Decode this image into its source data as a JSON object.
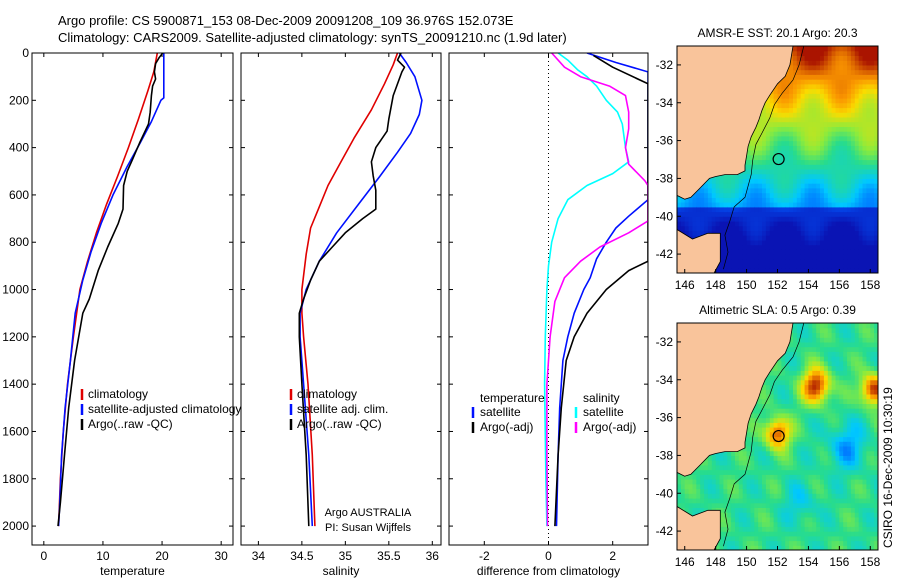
{
  "header": {
    "line1": "Argo profile: CS 5900871_153 08-Dec-2009 20091208_109 36.976S 152.073E",
    "line2": "Climatology: CARS2009. Satellite-adjusted climatology: synTS_20091210.nc (1.9d later)"
  },
  "side_stamp": "CSIRO 16-Dec-2009 10:30:19",
  "colors": {
    "climatology": "#e00000",
    "satellite": "#0010ff",
    "argo": "#000000",
    "magenta": "#ff00ff",
    "cyan": "#00ffff",
    "land": "#f9c49b"
  },
  "chart_data": [
    {
      "type": "line",
      "panel": "temperature",
      "xlabel": "temperature",
      "ylabel": "",
      "xlim": [
        -2,
        32
      ],
      "ylim": [
        2080,
        0
      ],
      "xticks": [
        "0",
        "10",
        "20",
        "30"
      ],
      "yticks": [
        "0",
        "200",
        "400",
        "600",
        "800",
        "1000",
        "1200",
        "1400",
        "1600",
        "1800",
        "2000"
      ],
      "legend": [
        "climatology",
        "satellite-adjusted climatology",
        "Argo(..raw -QC)"
      ],
      "series": [
        {
          "name": "climatology",
          "color": "#e00000",
          "points": [
            [
              19.2,
              0
            ],
            [
              18.6,
              80
            ],
            [
              17.6,
              160
            ],
            [
              16.0,
              280
            ],
            [
              14.3,
              400
            ],
            [
              12.5,
              520
            ],
            [
              10.6,
              640
            ],
            [
              8.9,
              760
            ],
            [
              7.4,
              880
            ],
            [
              6.1,
              1000
            ],
            [
              5.0,
              1200
            ],
            [
              4.0,
              1400
            ],
            [
              3.3,
              1600
            ],
            [
              2.8,
              1800
            ],
            [
              2.5,
              2000
            ]
          ]
        },
        {
          "name": "satellite-adjusted climatology",
          "color": "#0010ff",
          "points": [
            [
              20.3,
              0
            ],
            [
              20.3,
              190
            ],
            [
              19.8,
              200
            ],
            [
              18.2,
              290
            ],
            [
              16.3,
              380
            ],
            [
              14.1,
              480
            ],
            [
              11.7,
              600
            ],
            [
              9.7,
              720
            ],
            [
              8.0,
              840
            ],
            [
              6.6,
              960
            ],
            [
              5.3,
              1100
            ],
            [
              4.5,
              1300
            ],
            [
              3.6,
              1500
            ],
            [
              3.0,
              1700
            ],
            [
              2.7,
              1900
            ],
            [
              2.5,
              2000
            ]
          ]
        },
        {
          "name": "Argo(..raw -QC)",
          "color": "#000000",
          "points": [
            [
              20.1,
              0
            ],
            [
              19.5,
              20
            ],
            [
              18.9,
              45
            ],
            [
              18.7,
              80
            ],
            [
              18.9,
              110
            ],
            [
              18.4,
              140
            ],
            [
              18.2,
              180
            ],
            [
              18.0,
              250
            ],
            [
              17.7,
              300
            ],
            [
              16.2,
              380
            ],
            [
              15.0,
              450
            ],
            [
              14.1,
              500
            ],
            [
              13.5,
              560
            ],
            [
              13.4,
              660
            ],
            [
              12.6,
              720
            ],
            [
              10.8,
              820
            ],
            [
              9.2,
              920
            ],
            [
              7.7,
              1040
            ],
            [
              6.6,
              1100
            ],
            [
              5.2,
              1300
            ],
            [
              4.2,
              1500
            ],
            [
              3.5,
              1700
            ],
            [
              2.8,
              1900
            ],
            [
              2.4,
              2000
            ]
          ]
        }
      ]
    },
    {
      "type": "line",
      "panel": "salinity",
      "xlabel": "salinity",
      "ylabel": "",
      "xlim": [
        33.8,
        36.1
      ],
      "ylim": [
        2080,
        0
      ],
      "xticks": [
        "34",
        "34.5",
        "35",
        "35.5",
        "36"
      ],
      "legend": [
        "climatology",
        "satellite adj. clim.",
        "Argo(..raw -QC)"
      ],
      "annotation": [
        "Argo AUSTRALIA",
        "PI: Susan Wijffels"
      ],
      "series": [
        {
          "name": "climatology",
          "color": "#e00000",
          "points": [
            [
              35.6,
              0
            ],
            [
              35.55,
              50
            ],
            [
              35.45,
              130
            ],
            [
              35.3,
              240
            ],
            [
              35.1,
              360
            ],
            [
              34.95,
              460
            ],
            [
              34.8,
              560
            ],
            [
              34.7,
              650
            ],
            [
              34.6,
              740
            ],
            [
              34.55,
              850
            ],
            [
              34.5,
              1000
            ],
            [
              34.5,
              1100
            ],
            [
              34.52,
              1200
            ],
            [
              34.57,
              1400
            ],
            [
              34.62,
              1700
            ],
            [
              34.65,
              2000
            ]
          ]
        },
        {
          "name": "satellite adj. clim.",
          "color": "#0010ff",
          "points": [
            [
              35.62,
              0
            ],
            [
              35.7,
              40
            ],
            [
              35.8,
              100
            ],
            [
              35.88,
              200
            ],
            [
              35.85,
              260
            ],
            [
              35.75,
              340
            ],
            [
              35.6,
              420
            ],
            [
              35.4,
              520
            ],
            [
              35.15,
              640
            ],
            [
              34.9,
              760
            ],
            [
              34.7,
              880
            ],
            [
              34.55,
              1000
            ],
            [
              34.48,
              1100
            ],
            [
              34.48,
              1200
            ],
            [
              34.52,
              1400
            ],
            [
              34.58,
              1700
            ],
            [
              34.62,
              2000
            ]
          ]
        },
        {
          "name": "Argo(..raw -QC)",
          "color": "#000000",
          "points": [
            [
              35.64,
              0
            ],
            [
              35.6,
              30
            ],
            [
              35.68,
              60
            ],
            [
              35.65,
              80
            ],
            [
              35.55,
              180
            ],
            [
              35.5,
              280
            ],
            [
              35.48,
              330
            ],
            [
              35.35,
              400
            ],
            [
              35.3,
              460
            ],
            [
              35.32,
              520
            ],
            [
              35.35,
              580
            ],
            [
              35.35,
              660
            ],
            [
              35.2,
              700
            ],
            [
              35.0,
              760
            ],
            [
              34.85,
              820
            ],
            [
              34.7,
              880
            ],
            [
              34.6,
              960
            ],
            [
              34.52,
              1040
            ],
            [
              34.47,
              1100
            ],
            [
              34.47,
              1200
            ],
            [
              34.5,
              1400
            ],
            [
              34.55,
              1700
            ],
            [
              34.58,
              2000
            ]
          ]
        }
      ]
    },
    {
      "type": "line",
      "panel": "difference",
      "xlabel": "difference from climatology",
      "ylabel": "",
      "xlim": [
        -3.1,
        3.1
      ],
      "ylim": [
        2080,
        0
      ],
      "xticks": [
        "-2",
        "0",
        "2"
      ],
      "zero_line": "dotted",
      "legend_left": {
        "header": "temperature",
        "items": [
          "satellite",
          "Argo(-adj)"
        ]
      },
      "legend_right": {
        "header": "salinity",
        "items": [
          "satellite",
          "Argo(-adj)"
        ]
      },
      "series": [
        {
          "name": "temperature satellite",
          "color": "#0010ff",
          "points": [
            [
              1.2,
              0
            ],
            [
              2.1,
              40
            ],
            [
              3.1,
              80
            ],
            [
              3.1,
              620
            ],
            [
              2.5,
              690
            ],
            [
              2.1,
              740
            ],
            [
              1.8,
              800
            ],
            [
              1.5,
              870
            ],
            [
              1.3,
              950
            ],
            [
              1.1,
              1000
            ],
            [
              0.8,
              1100
            ],
            [
              0.6,
              1200
            ],
            [
              0.45,
              1300
            ],
            [
              0.35,
              1500
            ],
            [
              0.3,
              1700
            ],
            [
              0.25,
              2000
            ]
          ]
        },
        {
          "name": "temperature Argo(-adj)",
          "color": "#000000",
          "points": [
            [
              1.4,
              10
            ],
            [
              2.0,
              60
            ],
            [
              3.1,
              130
            ],
            [
              3.1,
              880
            ],
            [
              2.5,
              920
            ],
            [
              1.8,
              1000
            ],
            [
              1.2,
              1100
            ],
            [
              0.8,
              1200
            ],
            [
              0.55,
              1300
            ],
            [
              0.4,
              1500
            ],
            [
              0.3,
              1700
            ],
            [
              0.2,
              2000
            ]
          ]
        },
        {
          "name": "salinity satellite",
          "color": "#00ffff",
          "points": [
            [
              0.3,
              0
            ],
            [
              0.6,
              30
            ],
            [
              0.9,
              70
            ],
            [
              1.2,
              100
            ],
            [
              1.5,
              140
            ],
            [
              1.8,
              200
            ],
            [
              2.15,
              250
            ],
            [
              2.3,
              300
            ],
            [
              2.4,
              400
            ],
            [
              2.5,
              460
            ],
            [
              2.0,
              510
            ],
            [
              1.2,
              560
            ],
            [
              0.6,
              620
            ],
            [
              0.3,
              700
            ],
            [
              0.1,
              800
            ],
            [
              0.0,
              900
            ],
            [
              -0.05,
              1000
            ],
            [
              -0.1,
              1200
            ],
            [
              -0.12,
              1400
            ],
            [
              -0.08,
              1800
            ],
            [
              -0.05,
              2000
            ]
          ]
        },
        {
          "name": "salinity Argo(-adj)",
          "color": "#ff00ff",
          "points": [
            [
              0.1,
              0
            ],
            [
              0.5,
              60
            ],
            [
              1.0,
              100
            ],
            [
              1.9,
              140
            ],
            [
              2.4,
              180
            ],
            [
              2.5,
              250
            ],
            [
              2.5,
              320
            ],
            [
              2.4,
              400
            ],
            [
              2.5,
              470
            ],
            [
              3.0,
              540
            ],
            [
              3.1,
              560
            ],
            [
              3.1,
              710
            ],
            [
              2.5,
              760
            ],
            [
              1.6,
              820
            ],
            [
              1.0,
              880
            ],
            [
              0.5,
              950
            ],
            [
              0.2,
              1050
            ],
            [
              0.05,
              1200
            ],
            [
              -0.05,
              1400
            ],
            [
              -0.05,
              1700
            ],
            [
              -0.03,
              2000
            ]
          ]
        }
      ]
    },
    {
      "type": "heatmap",
      "panel": "sst_map",
      "title": "AMSR-E SST: 20.1 Argo: 20.3",
      "xlim": [
        145.5,
        158.5
      ],
      "ylim": [
        -43,
        -31
      ],
      "xticks": [
        "146",
        "148",
        "150",
        "152",
        "154",
        "156",
        "158"
      ],
      "yticks": [
        "-32",
        "-34",
        "-36",
        "-38",
        "-40",
        "-42"
      ],
      "marker": {
        "lon": 152.073,
        "lat": -36.976
      }
    },
    {
      "type": "heatmap",
      "panel": "sla_map",
      "title": "Altimetric SLA: 0.5 Argo: 0.39",
      "xlim": [
        145.5,
        158.5
      ],
      "ylim": [
        -43,
        -31
      ],
      "xticks": [
        "146",
        "148",
        "150",
        "152",
        "154",
        "156",
        "158"
      ],
      "yticks": [
        "-32",
        "-34",
        "-36",
        "-38",
        "-40",
        "-42"
      ],
      "marker": {
        "lon": 152.073,
        "lat": -36.976
      }
    }
  ]
}
